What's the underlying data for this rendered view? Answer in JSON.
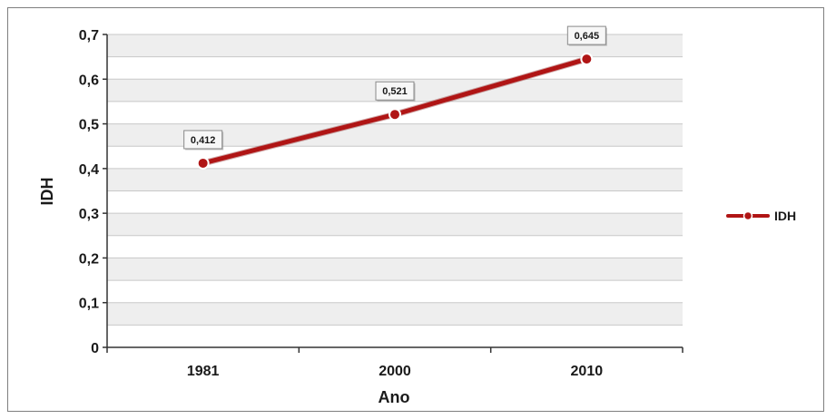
{
  "colors": {
    "series": "#b01515",
    "series_dark": "#7a0a0a",
    "band": "#eeeeee",
    "gridline": "#c8c8c8",
    "axis": "#333333"
  },
  "chart_data": {
    "type": "line",
    "title": "",
    "xlabel": "Ano",
    "ylabel": "IDH",
    "categories": [
      "1981",
      "2000",
      "2010"
    ],
    "series": [
      {
        "name": "IDH",
        "values": [
          0.412,
          0.521,
          0.645
        ],
        "data_labels": [
          "0,412",
          "0,521",
          "0,645"
        ]
      }
    ],
    "ylim": [
      0,
      0.7
    ],
    "y_ticks": [
      0,
      0.1,
      0.2,
      0.3,
      0.4,
      0.5,
      0.6,
      0.7
    ],
    "y_tick_labels": [
      "0",
      "0,1",
      "0,2",
      "0,3",
      "0,4",
      "0,5",
      "0,6",
      "0,7"
    ],
    "grid": true,
    "legend_position": "right"
  }
}
